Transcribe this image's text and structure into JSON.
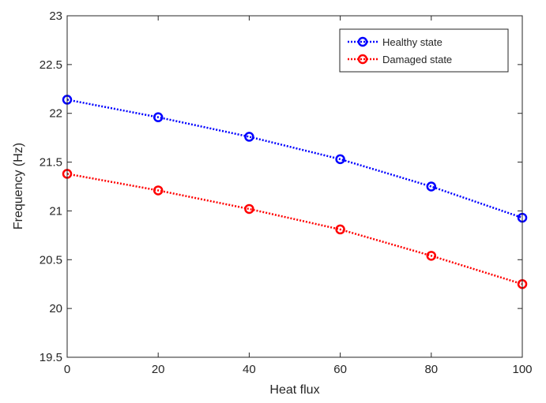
{
  "chart_data": {
    "type": "line",
    "title": "",
    "xlabel": "Heat flux",
    "ylabel": "Frequency (Hz)",
    "xlim": [
      0,
      100
    ],
    "ylim": [
      19.5,
      23
    ],
    "xticks": [
      0,
      20,
      40,
      60,
      80,
      100
    ],
    "yticks": [
      19.5,
      20,
      20.5,
      21,
      21.5,
      22,
      22.5,
      23
    ],
    "grid": false,
    "legend_position": "top-right",
    "x": [
      0,
      20,
      40,
      60,
      80,
      100
    ],
    "series": [
      {
        "name": "Healthy state",
        "color": "#0000ff",
        "marker": "circle",
        "line_style": "dotted",
        "values": [
          22.14,
          21.96,
          21.76,
          21.53,
          21.25,
          20.93
        ]
      },
      {
        "name": "Damaged state",
        "color": "#ff0000",
        "marker": "circle",
        "line_style": "dotted",
        "values": [
          21.38,
          21.21,
          21.02,
          20.81,
          20.54,
          20.25
        ]
      }
    ]
  }
}
